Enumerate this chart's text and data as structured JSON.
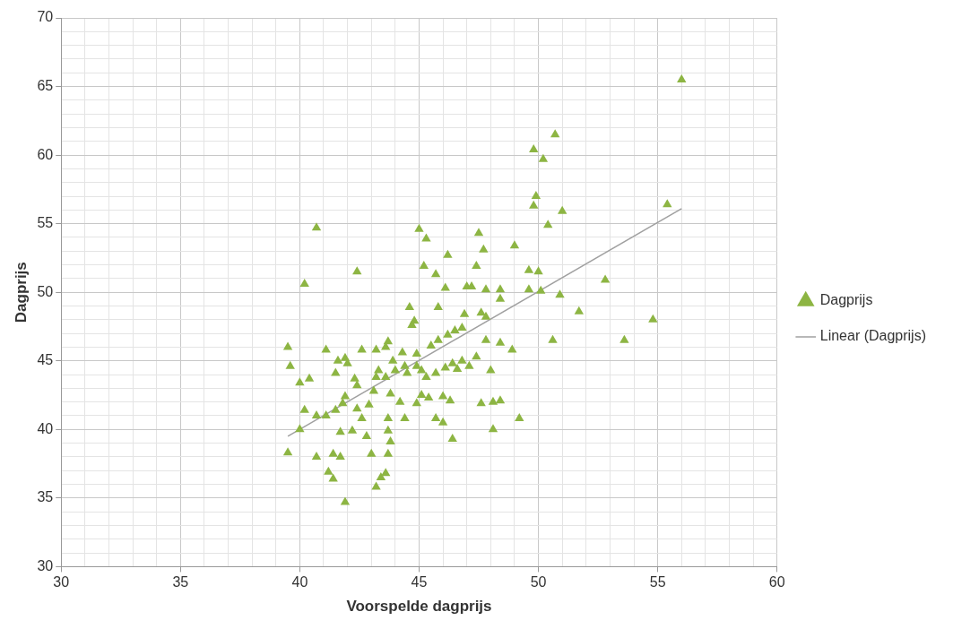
{
  "chart_data": {
    "type": "scatter",
    "xlabel": "Voorspelde dagprijs",
    "ylabel": "Dagprijs",
    "grid": true,
    "legend": "right",
    "xlim": [
      30,
      60
    ],
    "ylim": [
      30,
      70
    ],
    "xticks": [
      30,
      {
        "value": 31,
        "label": null
      },
      {
        "value": 32,
        "label": null
      },
      {
        "value": 33,
        "label": null
      },
      {
        "value": 34,
        "label": null
      },
      35,
      {
        "value": 36,
        "label": null
      },
      {
        "value": 37,
        "label": null
      },
      {
        "value": 38,
        "label": null
      },
      {
        "value": 39,
        "label": null
      },
      40,
      {
        "value": 41,
        "label": null
      },
      {
        "value": 42,
        "label": null
      },
      {
        "value": 43,
        "label": null
      },
      {
        "value": 44,
        "label": null
      },
      45,
      {
        "value": 46,
        "label": null
      },
      {
        "value": 47,
        "label": null
      },
      {
        "value": 48,
        "label": null
      },
      {
        "value": 49,
        "label": null
      },
      50,
      {
        "value": 51,
        "label": null
      },
      {
        "value": 52,
        "label": null
      },
      {
        "value": 53,
        "label": null
      },
      {
        "value": 54,
        "label": null
      },
      55,
      {
        "value": 56,
        "label": null
      },
      {
        "value": 57,
        "label": null
      },
      {
        "value": 58,
        "label": null
      },
      {
        "value": 59,
        "label": null
      },
      60
    ],
    "yticks": [
      30,
      {
        "value": 31,
        "label": null
      },
      {
        "value": 32,
        "label": null
      },
      {
        "value": 33,
        "label": null
      },
      {
        "value": 34,
        "label": null
      },
      35,
      {
        "value": 36,
        "label": null
      },
      {
        "value": 37,
        "label": null
      },
      {
        "value": 38,
        "label": null
      },
      {
        "value": 39,
        "label": null
      },
      40,
      {
        "value": 41,
        "label": null
      },
      {
        "value": 42,
        "label": null
      },
      {
        "value": 43,
        "label": null
      },
      {
        "value": 44,
        "label": null
      },
      45,
      {
        "value": 46,
        "label": null
      },
      {
        "value": 47,
        "label": null
      },
      {
        "value": 48,
        "label": null
      },
      {
        "value": 49,
        "label": null
      },
      50,
      {
        "value": 51,
        "label": null
      },
      {
        "value": 52,
        "label": null
      },
      {
        "value": 53,
        "label": null
      },
      {
        "value": 54,
        "label": null
      },
      55,
      {
        "value": 56,
        "label": null
      },
      {
        "value": 57,
        "label": null
      },
      {
        "value": 58,
        "label": null
      },
      {
        "value": 59,
        "label": null
      },
      60,
      {
        "value": 61,
        "label": null
      },
      {
        "value": 62,
        "label": null
      },
      {
        "value": 63,
        "label": null
      },
      {
        "value": 64,
        "label": null
      },
      65,
      {
        "value": 66,
        "label": null
      },
      {
        "value": 67,
        "label": null
      },
      {
        "value": 68,
        "label": null
      },
      {
        "value": 69,
        "label": null
      },
      70
    ],
    "series": [
      {
        "name": "Dagprijs",
        "color": "#8db543",
        "marker": "triangle",
        "x": [
          56.0,
          50.7,
          49.8,
          50.2,
          49.9,
          49.8,
          55.4,
          51.0,
          50.4,
          40.7,
          45.0,
          45.3,
          46.2,
          47.5,
          47.7,
          49.0,
          45.2,
          42.4,
          45.7,
          47.4,
          49.6,
          50.0,
          40.2,
          46.1,
          47.0,
          47.2,
          47.8,
          48.4,
          49.6,
          50.1,
          50.9,
          52.8,
          48.4,
          45.8,
          44.6,
          47.6,
          47.8,
          51.7,
          46.9,
          44.8,
          44.7,
          54.8,
          50.6,
          53.6,
          48.4,
          47.8,
          46.8,
          46.5,
          46.2,
          45.8,
          45.5,
          44.9,
          44.3,
          43.7,
          43.6,
          43.2,
          42.6,
          42.0,
          41.9,
          41.1,
          39.5,
          39.6,
          40.4,
          40.0,
          41.5,
          41.6,
          42.3,
          42.4,
          43.3,
          43.2,
          43.6,
          43.9,
          44.0,
          44.4,
          44.5,
          44.9,
          45.1,
          45.3,
          45.7,
          46.1,
          46.4,
          46.6,
          46.8,
          47.1,
          47.4,
          48.0,
          48.9,
          48.1,
          48.4,
          47.6,
          46.0,
          46.3,
          45.1,
          45.4,
          44.9,
          44.2,
          43.8,
          43.1,
          42.9,
          42.4,
          41.9,
          41.8,
          41.5,
          41.1,
          40.7,
          40.2,
          40.0,
          41.7,
          42.2,
          42.6,
          43.7,
          44.4,
          45.7,
          46.0,
          46.4,
          48.1,
          49.2,
          43.7,
          43.8,
          42.8,
          39.5,
          40.7,
          41.7,
          41.4,
          43.0,
          43.7,
          41.2,
          41.4,
          43.4,
          43.6,
          43.2,
          41.9
        ],
        "values": [
          65.5,
          61.5,
          60.4,
          59.7,
          57.0,
          56.3,
          56.4,
          55.9,
          54.9,
          54.7,
          54.6,
          53.9,
          52.7,
          54.3,
          53.1,
          53.4,
          51.9,
          51.5,
          51.3,
          51.9,
          51.6,
          51.5,
          50.6,
          50.3,
          50.4,
          50.4,
          50.2,
          50.2,
          50.2,
          50.1,
          49.8,
          50.9,
          49.5,
          48.9,
          48.9,
          48.5,
          48.2,
          48.6,
          48.4,
          47.9,
          47.6,
          48.0,
          46.5,
          46.5,
          46.3,
          46.5,
          47.4,
          47.2,
          46.9,
          46.5,
          46.1,
          45.5,
          45.6,
          46.4,
          46.0,
          45.8,
          45.8,
          44.8,
          45.2,
          45.8,
          46.0,
          44.6,
          43.7,
          43.4,
          44.1,
          45.0,
          43.7,
          43.2,
          44.3,
          43.8,
          43.8,
          45.0,
          44.3,
          44.6,
          44.1,
          44.6,
          44.3,
          43.8,
          44.1,
          44.5,
          44.8,
          44.4,
          45.0,
          44.6,
          45.3,
          44.3,
          45.8,
          42.0,
          42.1,
          41.9,
          42.4,
          42.1,
          42.5,
          42.3,
          41.9,
          42.0,
          42.6,
          42.8,
          41.8,
          41.5,
          42.4,
          41.9,
          41.4,
          41.0,
          41.0,
          41.4,
          40.0,
          39.8,
          39.9,
          40.8,
          40.8,
          40.8,
          40.8,
          40.5,
          39.3,
          40.0,
          40.8,
          39.9,
          39.1,
          39.5,
          38.3,
          38.0,
          38.0,
          38.2,
          38.2,
          38.2,
          36.9,
          36.4,
          36.5,
          36.8,
          35.8,
          34.7
        ]
      },
      {
        "name": "Linear (Dagprijs)",
        "type": "line",
        "marker": "none",
        "color": "#a0a0a0",
        "x": [
          39.5,
          56.0
        ],
        "values": [
          39.5,
          56.1
        ]
      }
    ]
  }
}
